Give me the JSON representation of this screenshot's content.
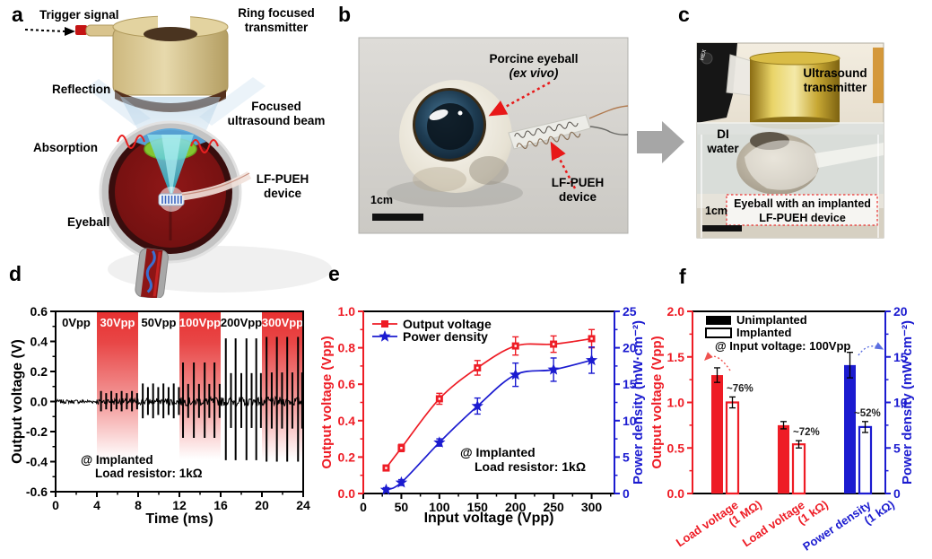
{
  "figure": {
    "panel_labels": {
      "a": "a",
      "b": "b",
      "c": "c",
      "d": "d",
      "e": "e",
      "f": "f"
    }
  },
  "panel_a": {
    "trigger_signal": "Trigger signal",
    "transmitter_l1": "Ring focused",
    "transmitter_l2": "transmitter",
    "reflection": "Reflection",
    "beam_l1": "Focused",
    "beam_l2": "ultrasound beam",
    "absorption": "Absorption",
    "device_l1": "LF-PUEH",
    "device_l2": "device",
    "eyeball": "Eyeball"
  },
  "panel_b": {
    "callout_eyeball_l1": "Porcine eyeball",
    "callout_eyeball_l2": "(ex vivo)",
    "callout_device_l1": "LF-PUEH",
    "callout_device_l2": "device",
    "scalebar": "1cm"
  },
  "panel_c": {
    "transmitter_l1": "Ultrasound",
    "transmitter_l2": "transmitter",
    "water_l1": "DI",
    "water_l2": "water",
    "caption_l1": "Eyeball with an implanted",
    "caption_l2": "LF-PUEH device",
    "scalebar": "1cm",
    "clamp_text": "HEX"
  },
  "colors": {
    "red": "#ee1c25",
    "blue": "#1b1bd0",
    "band_red": "#e83131",
    "gray_arrow": "#a6a6a6"
  },
  "chart_data": [
    {
      "panel": "d",
      "type": "line",
      "kind": "waveform",
      "xlabel": "Time (ms)",
      "ylabel": "Output voltage (V)",
      "xlim": [
        0,
        24
      ],
      "ylim": [
        -0.6,
        0.6
      ],
      "xticks": [
        0,
        4,
        8,
        12,
        16,
        20,
        24
      ],
      "yticks": [
        -0.6,
        -0.4,
        -0.2,
        0.0,
        0.2,
        0.4,
        0.6
      ],
      "annotation_l1": "@ Implanted",
      "annotation_l2": "Load resistor: 1kΩ",
      "regions": [
        {
          "label": "0Vpp",
          "start": 0,
          "end": 4,
          "shaded": false,
          "spike_amp": 0.0,
          "noise": 0.013,
          "spike_times": []
        },
        {
          "label": "30Vpp",
          "start": 4,
          "end": 8,
          "shaded": true,
          "spike_amp": 0.07,
          "noise": 0.022,
          "spike_times": [
            4.4,
            4.9,
            5.4,
            5.9,
            6.4,
            6.9,
            7.4,
            7.9
          ]
        },
        {
          "label": "50Vpp",
          "start": 8,
          "end": 12,
          "shaded": false,
          "spike_amp": 0.12,
          "noise": 0.024,
          "spike_times": [
            8.45,
            8.95,
            9.45,
            9.95,
            10.45,
            10.95,
            11.45,
            11.95
          ]
        },
        {
          "label": "100Vpp",
          "start": 12,
          "end": 16,
          "shaded": true,
          "spike_amp": 0.26,
          "noise": 0.028,
          "spike_times": [
            12.35,
            12.85,
            13.4,
            13.9,
            14.45,
            14.9,
            15.4,
            15.9
          ]
        },
        {
          "label": "200Vpp",
          "start": 16,
          "end": 20,
          "shaded": false,
          "spike_amp": 0.42,
          "noise": 0.03,
          "spike_times": [
            16.5,
            17.0,
            17.45,
            18.0,
            18.5,
            19.0,
            19.45,
            19.9
          ]
        },
        {
          "label": "300Vpp",
          "start": 20,
          "end": 24,
          "shaded": true,
          "spike_amp": 0.43,
          "noise": 0.03,
          "spike_times": [
            20.45,
            20.95,
            21.45,
            21.95,
            22.45,
            22.95,
            23.5,
            23.9
          ]
        }
      ]
    },
    {
      "panel": "e",
      "type": "line",
      "xlabel": "Input voltage (Vpp)",
      "ylabel_left": "Output voltage (Vpp)",
      "ylabel_right": "Power density (mW·cm⁻²)",
      "xlim": [
        0,
        330
      ],
      "xticks": [
        0,
        50,
        100,
        150,
        200,
        250,
        300
      ],
      "ylim_left": [
        0,
        1.0
      ],
      "yticks_left": [
        0,
        0.2,
        0.4,
        0.6,
        0.8,
        1.0
      ],
      "ylim_right": [
        0,
        25
      ],
      "yticks_right": [
        0,
        5,
        10,
        15,
        20,
        25
      ],
      "x": [
        30,
        50,
        100,
        150,
        200,
        250,
        300
      ],
      "series": [
        {
          "name": "Output voltage",
          "axis": "left",
          "marker": "square",
          "color": "#ee1c25",
          "values": [
            0.14,
            0.25,
            0.52,
            0.69,
            0.81,
            0.82,
            0.85
          ],
          "errors": [
            0.015,
            0.02,
            0.03,
            0.04,
            0.05,
            0.045,
            0.05
          ]
        },
        {
          "name": "Power density",
          "axis": "right",
          "marker": "star",
          "color": "#1b1bd0",
          "values": [
            0.5,
            1.5,
            7.0,
            12.0,
            16.3,
            17.0,
            18.3
          ],
          "errors": [
            0.3,
            0.4,
            0.5,
            1.1,
            1.6,
            1.6,
            1.8
          ]
        }
      ],
      "annotation_l1": "@ Implanted",
      "annotation_l2": "Load resistor: 1kΩ"
    },
    {
      "panel": "f",
      "type": "bar",
      "ylabel_left": "Output voltage (Vpp)",
      "ylabel_right": "Power density (mW·cm⁻²)",
      "ylim_left": [
        0,
        2.0
      ],
      "yticks_left": [
        0,
        0.5,
        1.0,
        1.5,
        2.0
      ],
      "ylim_right": [
        0,
        20
      ],
      "yticks_right": [
        0,
        5,
        10,
        15,
        20
      ],
      "legend": [
        {
          "label": "Unimplanted",
          "fill": "solid"
        },
        {
          "label": "Implanted",
          "fill": "open"
        }
      ],
      "note": "@ Input voltage: 100Vpp",
      "groups": [
        {
          "label_l1": "Load voltage",
          "label_l2": "(1 MΩ)",
          "axis": "left",
          "color": "#ee1c25",
          "unimplanted": 1.3,
          "unimplanted_err": 0.08,
          "implanted": 1.0,
          "implanted_err": 0.06,
          "retention": "~76%"
        },
        {
          "label_l1": "Load voltage",
          "label_l2": "(1 kΩ)",
          "axis": "left",
          "color": "#ee1c25",
          "unimplanted": 0.75,
          "unimplanted_err": 0.04,
          "implanted": 0.54,
          "implanted_err": 0.04,
          "retention": "~72%"
        },
        {
          "label_l1": "Power density",
          "label_l2": "(1 kΩ)",
          "axis": "right",
          "color": "#1b1bd0",
          "unimplanted": 14.1,
          "unimplanted_err": 1.4,
          "implanted": 7.3,
          "implanted_err": 0.6,
          "retention": "~52%"
        }
      ]
    }
  ]
}
